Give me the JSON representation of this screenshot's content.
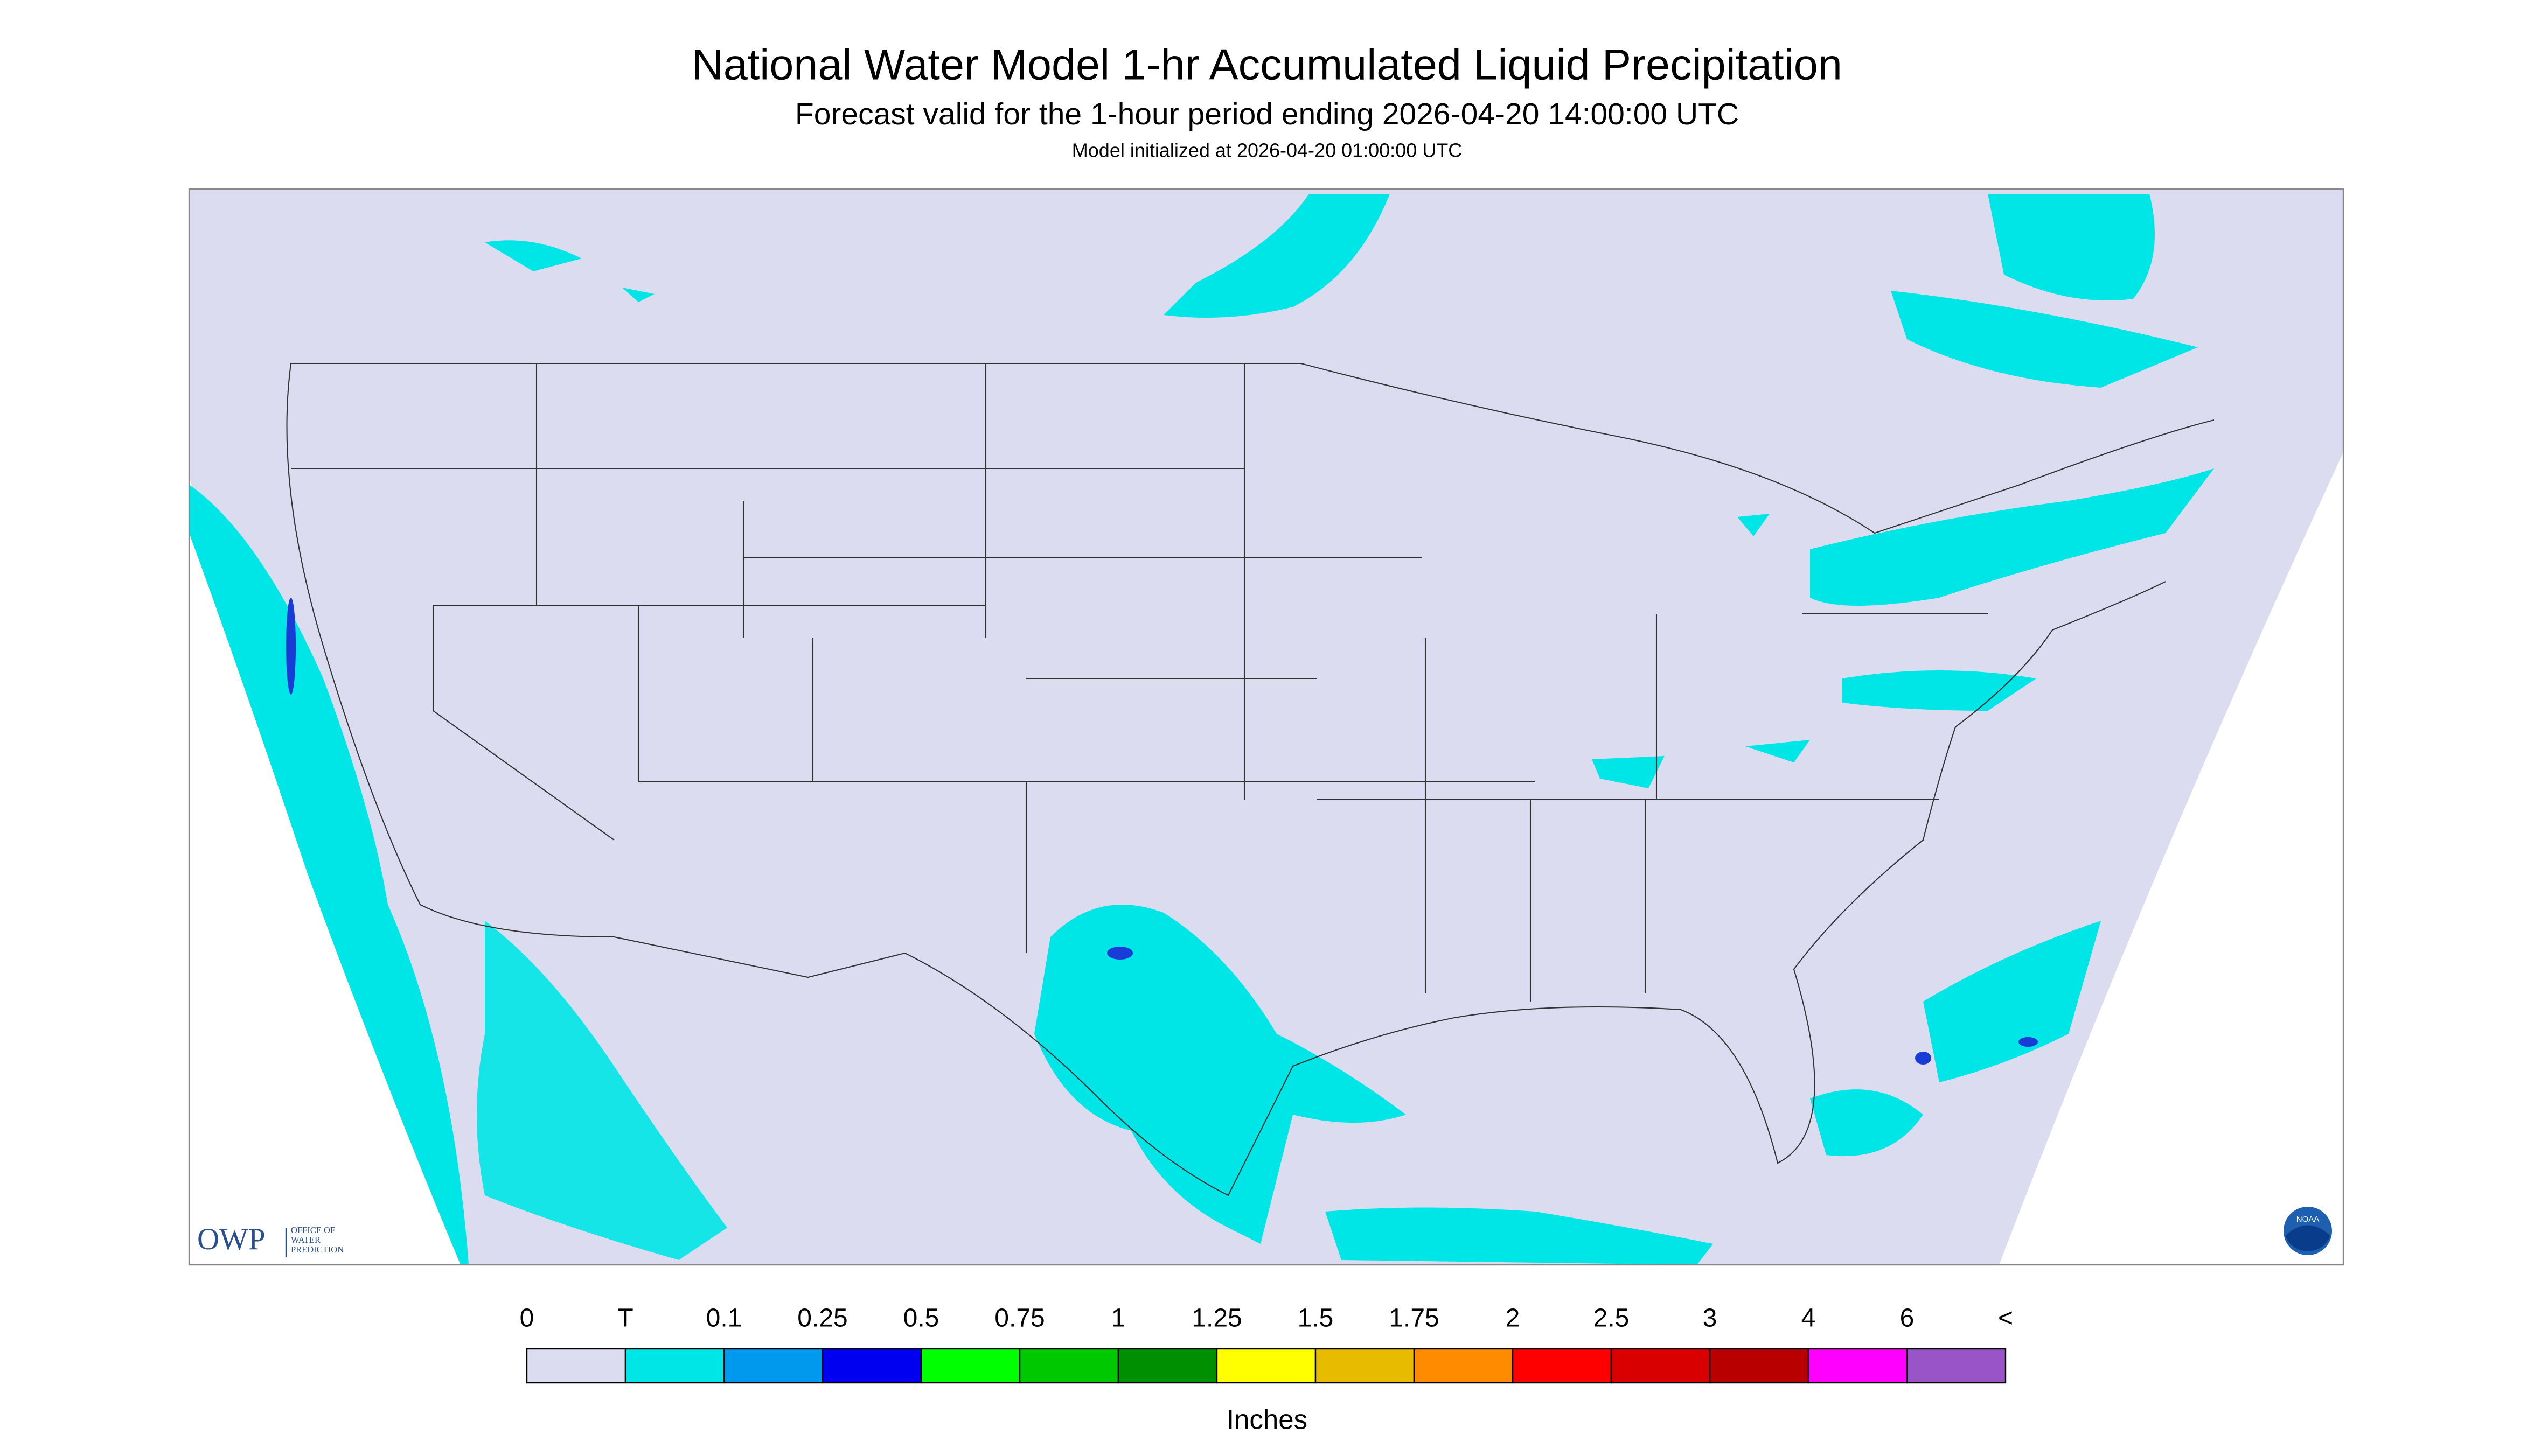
{
  "header": {
    "title": "National Water Model 1-hr Accumulated Liquid Precipitation",
    "subtitle": "Forecast valid for the 1-hour period ending 2026-04-20 14:00:00 UTC",
    "initialized": "Model initialized at 2026-04-20 01:00:00 UTC"
  },
  "legend": {
    "labels": [
      "0",
      "T",
      "0.1",
      "0.25",
      "0.5",
      "0.75",
      "1",
      "1.25",
      "1.5",
      "1.75",
      "2",
      "2.5",
      "3",
      "4",
      "6",
      "<"
    ],
    "colors": [
      "#dcdcf0",
      "#00e6e6",
      "#0099ee",
      "#0000f0",
      "#00ff00",
      "#00c800",
      "#008f00",
      "#ffff00",
      "#e6bb00",
      "#ff8c00",
      "#ff0000",
      "#d80000",
      "#b80000",
      "#ff00ff",
      "#9955c8"
    ],
    "unit": "Inches"
  },
  "logo": {
    "owp": "OWP",
    "office": [
      "OFFICE OF",
      "WATER",
      "PREDICTION"
    ],
    "noaa": "NOAA"
  }
}
